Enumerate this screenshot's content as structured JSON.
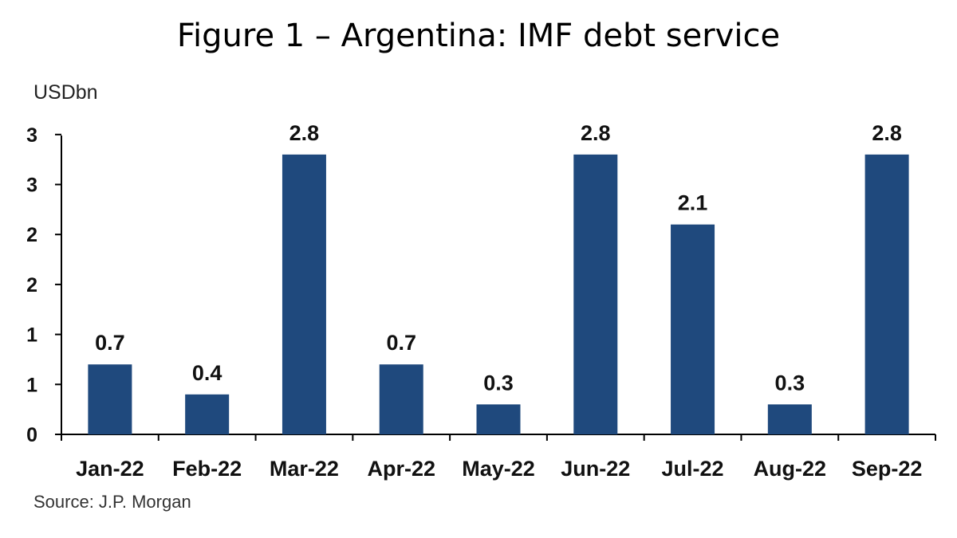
{
  "chart_data": {
    "type": "bar",
    "title": "Figure 1 – Argentina: IMF debt service",
    "unit_label": "USDbn",
    "source": "Source: J.P. Morgan",
    "categories": [
      "Jan-22",
      "Feb-22",
      "Mar-22",
      "Apr-22",
      "May-22",
      "Jun-22",
      "Jul-22",
      "Aug-22",
      "Sep-22"
    ],
    "values": [
      0.7,
      0.4,
      2.8,
      0.7,
      0.3,
      2.8,
      2.1,
      0.3,
      2.8
    ],
    "data_labels": [
      "0.7",
      "0.4",
      "2.8",
      "0.7",
      "0.3",
      "2.8",
      "2.1",
      "0.3",
      "2.8"
    ],
    "ytick_labels": [
      "0",
      "1",
      "1",
      "2",
      "2",
      "3",
      "3"
    ],
    "ylim": [
      0,
      3
    ],
    "grid": false,
    "bar_color": "#1f497d"
  }
}
